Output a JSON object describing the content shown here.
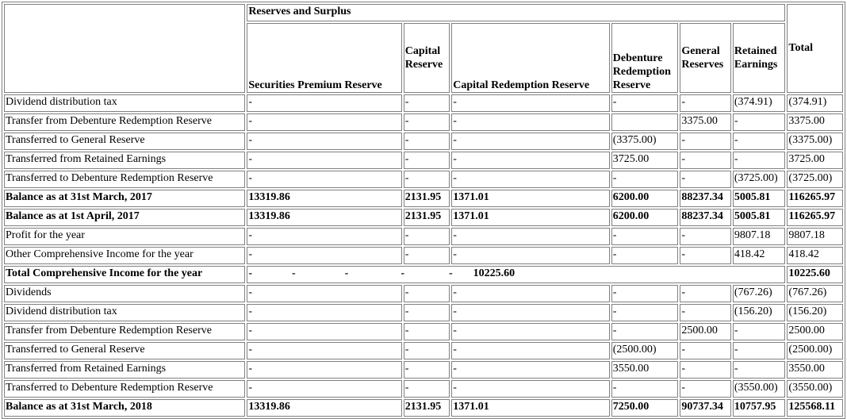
{
  "header": {
    "group_label": "Reserves and Surplus",
    "total": "Total",
    "columns": {
      "securities_premium": "Securities Premium Reserve",
      "capital_reserve": "Capital Reserve",
      "capital_redemption": "Capital Redemption Reserve",
      "debenture_redemption": "Debenture Redemption Reserve",
      "general_reserves": "General Reserves",
      "retained_earnings": "Retained Earnings"
    }
  },
  "rows": [
    {
      "label": "Dividend distribution tax",
      "bold": false,
      "cells": [
        "-",
        "-",
        "-",
        "-",
        "-",
        "(374.91)",
        "(374.91)"
      ]
    },
    {
      "label": "Transfer from Debenture Redemption Reserve",
      "bold": false,
      "cells": [
        "-",
        "-",
        "-",
        "",
        "3375.00",
        "-",
        "3375.00"
      ]
    },
    {
      "label": "Transferred to General Reserve",
      "bold": false,
      "cells": [
        "-",
        "-",
        "-",
        "(3375.00)",
        "-",
        "-",
        "(3375.00)"
      ]
    },
    {
      "label": "Transferred from Retained Earnings",
      "bold": false,
      "cells": [
        "-",
        "-",
        "-",
        "3725.00",
        "-",
        "-",
        "3725.00"
      ]
    },
    {
      "label": "Transferred to Debenture Redemption Reserve",
      "bold": false,
      "cells": [
        "-",
        "-",
        "-",
        "-",
        "-",
        "(3725.00)",
        "(3725.00)"
      ]
    },
    {
      "label": "Balance as at 31st March, 2017",
      "bold": true,
      "cells": [
        "13319.86",
        "2131.95",
        "1371.01",
        "6200.00",
        "88237.34",
        "5005.81",
        "116265.97"
      ]
    },
    {
      "label": "Balance as at 1st April, 2017",
      "bold": true,
      "cells": [
        "13319.86",
        "2131.95",
        "1371.01",
        "6200.00",
        "88237.34",
        "5005.81",
        "116265.97"
      ]
    },
    {
      "label": "Profit for the year",
      "bold": false,
      "cells": [
        "-",
        "-",
        "-",
        "-",
        "-",
        "9807.18",
        "9807.18"
      ]
    },
    {
      "label": "Other Comprehensive Income for the year",
      "bold": false,
      "cells": [
        "-",
        "-",
        "-",
        "-",
        "-",
        "418.42",
        "418.42"
      ]
    }
  ],
  "tci_row": {
    "label": "Total Comprehensive Income for the year",
    "inline": [
      "-",
      "-",
      "-",
      "-",
      "-",
      "10225.60"
    ],
    "total": "10225.60"
  },
  "rows2": [
    {
      "label": "Dividends",
      "bold": false,
      "cells": [
        "-",
        "-",
        "-",
        "-",
        "-",
        "(767.26)",
        "(767.26)"
      ]
    },
    {
      "label": "Dividend distribution tax",
      "bold": false,
      "cells": [
        "-",
        "-",
        "-",
        "-",
        "-",
        "(156.20)",
        "(156.20)"
      ]
    },
    {
      "label": "Transfer from Debenture Redemption Reserve",
      "bold": false,
      "cells": [
        "-",
        "-",
        "-",
        "-",
        "2500.00",
        "-",
        "2500.00"
      ]
    },
    {
      "label": "Transferred to General Reserve",
      "bold": false,
      "cells": [
        "-",
        "-",
        "-",
        "(2500.00)",
        "-",
        "-",
        "(2500.00)"
      ]
    },
    {
      "label": "Transferred from Retained Earnings",
      "bold": false,
      "cells": [
        "-",
        "-",
        "-",
        "3550.00",
        "-",
        "-",
        "3550.00"
      ]
    },
    {
      "label": "Transferred to Debenture Redemption Reserve",
      "bold": false,
      "cells": [
        "-",
        "-",
        "-",
        "-",
        "-",
        "(3550.00)",
        "(3550.00)"
      ]
    },
    {
      "label": "Balance as at 31st March, 2018",
      "bold": true,
      "cells": [
        "13319.86",
        "2131.95",
        "1371.01",
        "7250.00",
        "90737.34",
        "10757.95",
        "125568.11"
      ]
    }
  ]
}
